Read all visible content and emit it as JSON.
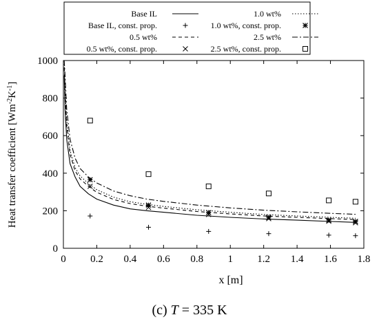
{
  "caption": {
    "panel": "(c)",
    "var": "T",
    "rest": "= 335 K"
  },
  "chart_data": {
    "type": "line",
    "xlabel": "x [m]",
    "ylabel": "Heat transfer coefficient [Wm",
    "ylabel_sup1": "-2",
    "ylabel_mid": "K",
    "ylabel_sup2": "-1",
    "ylabel_end": "]",
    "xlim": [
      0,
      1.8
    ],
    "ylim": [
      0,
      1000
    ],
    "x_ticks": [
      "0",
      "0.2",
      "0.4",
      "0.6",
      "0.8",
      "1",
      "1.2",
      "1.4",
      "1.6",
      "1.8"
    ],
    "y_ticks": [
      "0",
      "200",
      "400",
      "600",
      "800",
      "1000"
    ],
    "grid": false,
    "legend_position": "top, above plot area",
    "series": [
      {
        "name": "Base IL",
        "kind": "line",
        "style": "solid",
        "x": [
          0.005,
          0.01,
          0.02,
          0.04,
          0.07,
          0.1,
          0.15,
          0.2,
          0.3,
          0.4,
          0.5,
          0.6,
          0.8,
          1.0,
          1.2,
          1.4,
          1.6,
          1.75
        ],
        "y": [
          920,
          740,
          580,
          450,
          380,
          330,
          290,
          262,
          230,
          210,
          200,
          192,
          176,
          165,
          156,
          150,
          143,
          138
        ]
      },
      {
        "name": "1.0 wt%",
        "kind": "line",
        "style": "dotted",
        "x": [
          0.005,
          0.01,
          0.02,
          0.04,
          0.07,
          0.1,
          0.15,
          0.2,
          0.3,
          0.4,
          0.5,
          0.6,
          0.8,
          1.0,
          1.2,
          1.4,
          1.6,
          1.75
        ],
        "y": [
          980,
          860,
          680,
          520,
          430,
          385,
          345,
          312,
          272,
          248,
          234,
          223,
          205,
          192,
          180,
          172,
          165,
          160
        ]
      },
      {
        "name": "0.5 wt%",
        "kind": "line",
        "style": "dashed",
        "x": [
          0.005,
          0.01,
          0.02,
          0.04,
          0.07,
          0.1,
          0.15,
          0.2,
          0.3,
          0.4,
          0.5,
          0.6,
          0.8,
          1.0,
          1.2,
          1.4,
          1.6,
          1.75
        ],
        "y": [
          960,
          820,
          650,
          500,
          412,
          370,
          330,
          298,
          260,
          238,
          224,
          214,
          196,
          183,
          172,
          165,
          158,
          153
        ]
      },
      {
        "name": "2.5 wt%",
        "kind": "line",
        "style": "dash-dot",
        "x": [
          0.005,
          0.01,
          0.02,
          0.04,
          0.07,
          0.1,
          0.15,
          0.2,
          0.3,
          0.4,
          0.5,
          0.6,
          0.8,
          1.0,
          1.2,
          1.4,
          1.6,
          1.75
        ],
        "y": [
          1000,
          920,
          740,
          580,
          480,
          425,
          380,
          348,
          305,
          280,
          262,
          250,
          230,
          215,
          203,
          194,
          186,
          181
        ]
      },
      {
        "name": "Base IL, const. prop.",
        "kind": "scatter",
        "marker": "plus",
        "x": [
          0.16,
          0.51,
          0.87,
          1.23,
          1.59,
          1.75
        ],
        "y": [
          172,
          112,
          90,
          78,
          70,
          67
        ]
      },
      {
        "name": "1.0 wt%, const. prop.",
        "kind": "scatter",
        "marker": "star",
        "x": [
          0.16,
          0.51,
          0.87,
          1.23,
          1.59,
          1.75
        ],
        "y": [
          365,
          230,
          190,
          165,
          150,
          143
        ]
      },
      {
        "name": "0.5 wt%, const. prop.",
        "kind": "scatter",
        "marker": "cross",
        "x": [
          0.16,
          0.51,
          0.87,
          1.23,
          1.59,
          1.75
        ],
        "y": [
          330,
          218,
          180,
          158,
          144,
          136
        ]
      },
      {
        "name": "2.5 wt%, const. prop.",
        "kind": "scatter",
        "marker": "square",
        "x": [
          0.16,
          0.51,
          0.87,
          1.23,
          1.59,
          1.75
        ],
        "y": [
          680,
          395,
          330,
          292,
          255,
          248
        ]
      }
    ],
    "legend_order": [
      [
        "Base IL",
        "1.0 wt%"
      ],
      [
        "Base IL, const. prop.",
        "1.0 wt%, const. prop."
      ],
      [
        "0.5 wt%",
        "2.5 wt%"
      ],
      [
        "0.5 wt%, const. prop.",
        "2.5 wt%, const. prop."
      ]
    ]
  }
}
